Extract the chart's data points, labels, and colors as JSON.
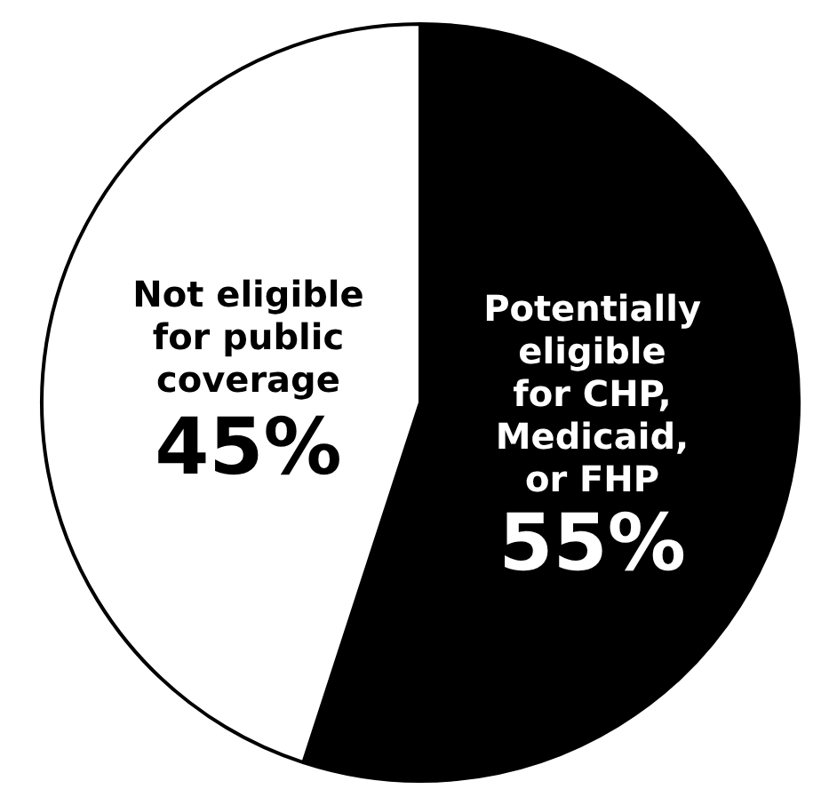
{
  "chart_data": {
    "type": "pie",
    "categories": [
      "Potentially\neligible\nfor CHP,\nMedicaid,\nor FHP",
      "Not eligible\nfor public\ncoverage"
    ],
    "values": [
      55,
      45
    ],
    "colors": [
      "#000000",
      "#ffffff"
    ],
    "value_labels": [
      "55%",
      "45%"
    ]
  }
}
